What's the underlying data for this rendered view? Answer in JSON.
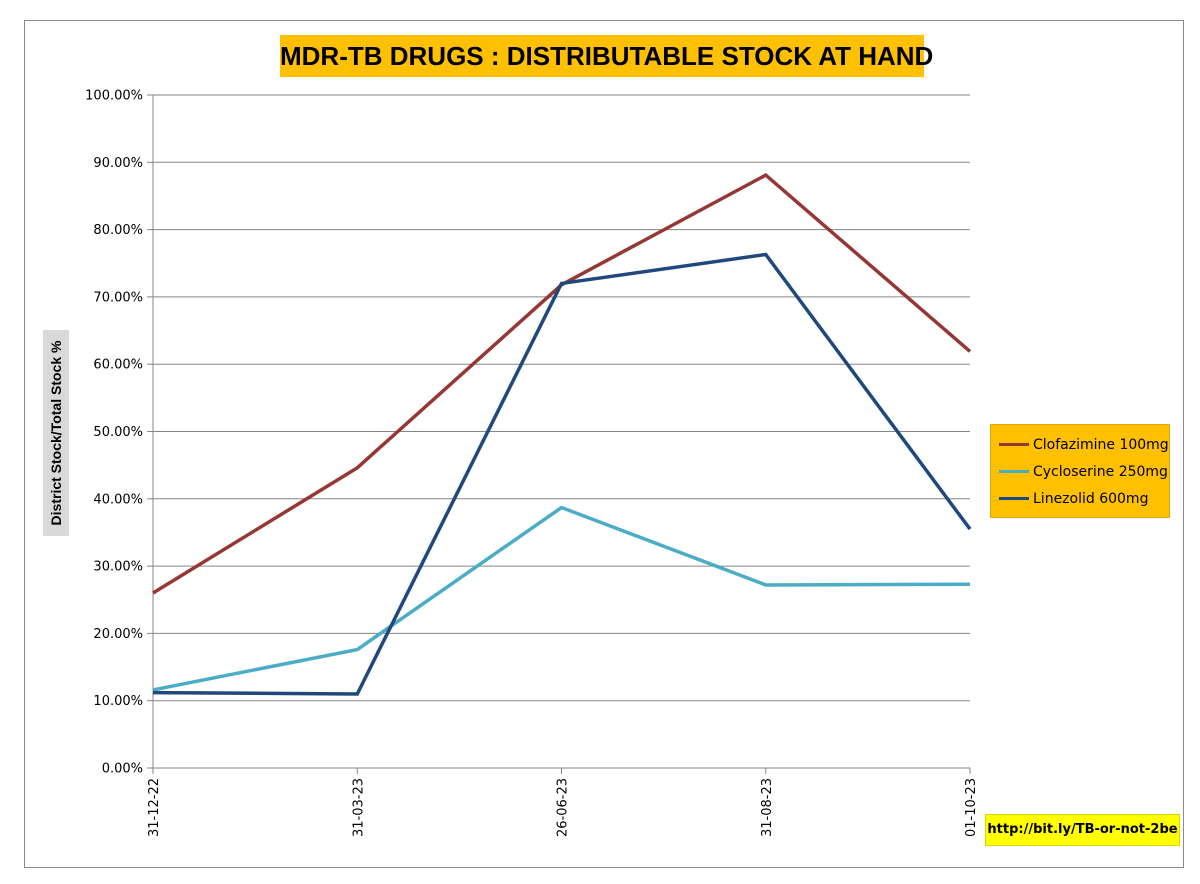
{
  "chart_data": {
    "type": "line",
    "title": "MDR-TB DRUGS : DISTRIBUTABLE STOCK AT HAND",
    "xlabel": "",
    "ylabel": "District Stock/Total Stock %",
    "categories": [
      "31-12-22",
      "31-03-23",
      "26-06-23",
      "31-08-23",
      "01-10-23"
    ],
    "ylim": [
      0,
      100
    ],
    "yticks": [
      0,
      10,
      20,
      30,
      40,
      50,
      60,
      70,
      80,
      90,
      100
    ],
    "ytick_labels": [
      "0.00%",
      "10.00%",
      "20.00%",
      "30.00%",
      "40.00%",
      "50.00%",
      "60.00%",
      "70.00%",
      "80.00%",
      "90.00%",
      "100.00%"
    ],
    "grid": true,
    "legend_position": "right",
    "series": [
      {
        "name": "Clofazimine 100mg",
        "color": "#953735",
        "values": [
          26.0,
          44.6,
          71.8,
          88.1,
          61.9
        ]
      },
      {
        "name": "Cycloserine 250mg",
        "color": "#4bacc6",
        "values": [
          11.6,
          17.6,
          38.7,
          27.2,
          27.3
        ]
      },
      {
        "name": "Linezolid 600mg",
        "color": "#1f497d",
        "values": [
          11.2,
          11.0,
          72.0,
          76.3,
          35.5
        ]
      }
    ]
  },
  "footer": {
    "url_text": "http://bit.ly/TB-or-not-2be"
  }
}
